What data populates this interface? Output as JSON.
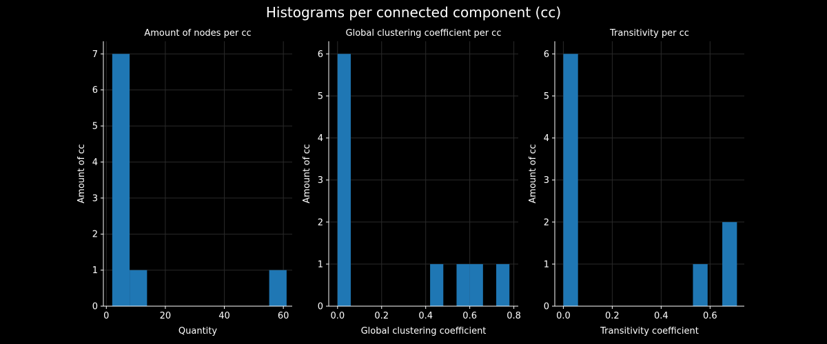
{
  "figure": {
    "title": "Histograms per connected component (cc)",
    "background": "#000000",
    "text_color": "#ffffff",
    "bar_color": "#1f77b4",
    "grid_color": "#2a2a2a"
  },
  "chart_data": [
    {
      "type": "bar",
      "title": "Amount of nodes per cc",
      "xlabel": "Quantity",
      "ylabel": "Amount of cc",
      "xlim": [
        -1.0,
        63.0
      ],
      "ylim": [
        0,
        7.35
      ],
      "xticks": [
        0,
        20,
        40,
        60
      ],
      "xtick_labels": [
        "0",
        "20",
        "40",
        "60"
      ],
      "yticks": [
        0,
        1,
        2,
        3,
        4,
        5,
        6,
        7
      ],
      "ytick_labels": [
        "0",
        "1",
        "2",
        "3",
        "4",
        "5",
        "6",
        "7"
      ],
      "grid": true,
      "bins": [
        {
          "x0": 2.0,
          "x1": 7.9,
          "value": 7
        },
        {
          "x0": 7.9,
          "x1": 13.8,
          "value": 1
        },
        {
          "x0": 55.2,
          "x1": 61.1,
          "value": 1
        }
      ]
    },
    {
      "type": "bar",
      "title": "Global clustering coefficient per cc",
      "xlabel": "Global clustering coefficient",
      "ylabel": "Amount of cc",
      "xlim": [
        -0.04,
        0.82
      ],
      "ylim": [
        0,
        6.3
      ],
      "xticks": [
        0.0,
        0.2,
        0.4,
        0.6,
        0.8
      ],
      "xtick_labels": [
        "0.0",
        "0.2",
        "0.4",
        "0.6",
        "0.8"
      ],
      "yticks": [
        0,
        1,
        2,
        3,
        4,
        5,
        6
      ],
      "ytick_labels": [
        "0",
        "1",
        "2",
        "3",
        "4",
        "5",
        "6"
      ],
      "grid": true,
      "bins": [
        {
          "x0": 0.0,
          "x1": 0.06,
          "value": 6
        },
        {
          "x0": 0.3,
          "x1": 0.36,
          "value": 0
        },
        {
          "x0": 0.42,
          "x1": 0.48,
          "value": 1
        },
        {
          "x0": 0.54,
          "x1": 0.6,
          "value": 1
        },
        {
          "x0": 0.6,
          "x1": 0.66,
          "value": 1
        },
        {
          "x0": 0.72,
          "x1": 0.78,
          "value": 1
        }
      ]
    },
    {
      "type": "bar",
      "title": "Transitivity per cc",
      "xlabel": "Transitivity coefficient",
      "ylabel": "Amount of cc",
      "xlim": [
        -0.035,
        0.74
      ],
      "ylim": [
        0,
        6.3
      ],
      "xticks": [
        0.0,
        0.2,
        0.4,
        0.6
      ],
      "xtick_labels": [
        "0.0",
        "0.2",
        "0.4",
        "0.6"
      ],
      "yticks": [
        0,
        1,
        2,
        3,
        4,
        5,
        6
      ],
      "ytick_labels": [
        "0",
        "1",
        "2",
        "3",
        "4",
        "5",
        "6"
      ],
      "grid": true,
      "bins": [
        {
          "x0": 0.0,
          "x1": 0.06,
          "value": 6
        },
        {
          "x0": 0.53,
          "x1": 0.59,
          "value": 1
        },
        {
          "x0": 0.65,
          "x1": 0.71,
          "value": 2
        }
      ]
    }
  ]
}
